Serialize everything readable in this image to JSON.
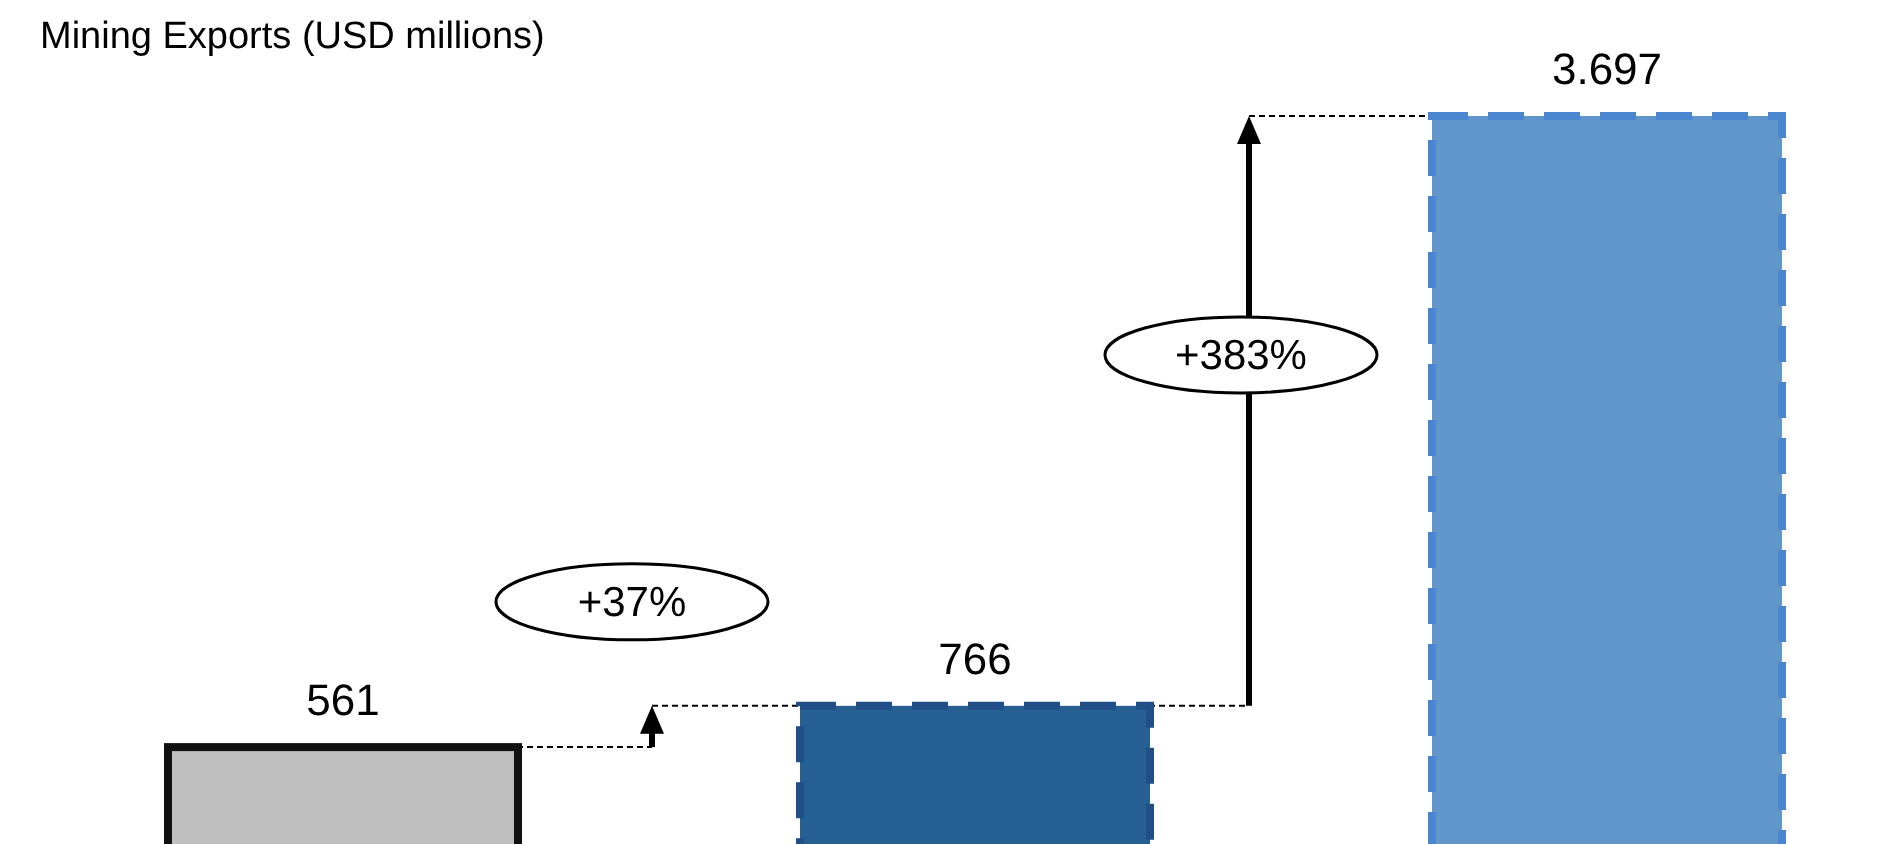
{
  "chart_data": {
    "type": "bar",
    "title": "Mining Exports (USD millions)",
    "categories": [
      null,
      null,
      null
    ],
    "values": [
      561,
      766,
      3697
    ],
    "colors": [
      "#bfbfbf",
      "#265f91",
      "#6096c9"
    ],
    "value_labels": [
      "561",
      "766",
      "3.697"
    ],
    "annotations": [
      "+37%",
      "+383%"
    ]
  }
}
